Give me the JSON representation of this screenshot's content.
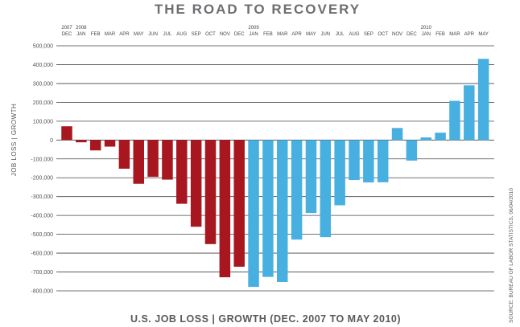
{
  "chart_data": {
    "type": "bar",
    "title": "THE ROAD TO RECOVERY",
    "xlabel": "U.S. JOB LOSS | GROWTH (DEC. 2007 TO MAY 2010)",
    "ylabel": "JOB LOSS | GROWTH",
    "source": "SOURCE: BUREAU OF LABOR STATISTICS, 06/04/2010",
    "ylim": [
      -800000,
      500000
    ],
    "yticks": [
      500000,
      400000,
      300000,
      200000,
      100000,
      0,
      -100000,
      -200000,
      -300000,
      -400000,
      -500000,
      -600000,
      -700000,
      -800000
    ],
    "ytick_labels": [
      "500,000",
      "400,000",
      "300,000",
      "200,000",
      "100,000",
      "0",
      "-100,000",
      "-200,000",
      "-300,000",
      "-400,000",
      "-500,000",
      "-600,000",
      "-700,000",
      "-800,000"
    ],
    "year_labels": [
      {
        "label": "2007",
        "index": 0
      },
      {
        "label": "2008",
        "index": 1
      },
      {
        "label": "2009",
        "index": 13
      },
      {
        "label": "2010",
        "index": 25
      }
    ],
    "categories": [
      "DEC",
      "JAN",
      "FEB",
      "MAR",
      "APR",
      "MAY",
      "JUN",
      "JUL",
      "AUG",
      "SEP",
      "OCT",
      "NOV",
      "DEC",
      "JAN",
      "FEB",
      "MAR",
      "APR",
      "MAY",
      "JUN",
      "JUL",
      "AUG",
      "SEP",
      "OCT",
      "NOV",
      "DEC",
      "JAN",
      "FEB",
      "MAR",
      "APR",
      "MAY"
    ],
    "values": [
      73000,
      -12000,
      -55000,
      -35000,
      -152000,
      -232000,
      -195000,
      -210000,
      -338000,
      -460000,
      -552000,
      -728000,
      -672000,
      -779000,
      -726000,
      -753000,
      -528000,
      -387000,
      -515000,
      -346000,
      -212000,
      -225000,
      -224000,
      64000,
      -109000,
      14000,
      39000,
      208000,
      290000,
      431000
    ],
    "colors": {
      "loss_period": "#a8171f",
      "recovery_period": "#48b0e0",
      "grid": "#444444"
    },
    "loss_period_end_index": 12,
    "grid": true
  }
}
